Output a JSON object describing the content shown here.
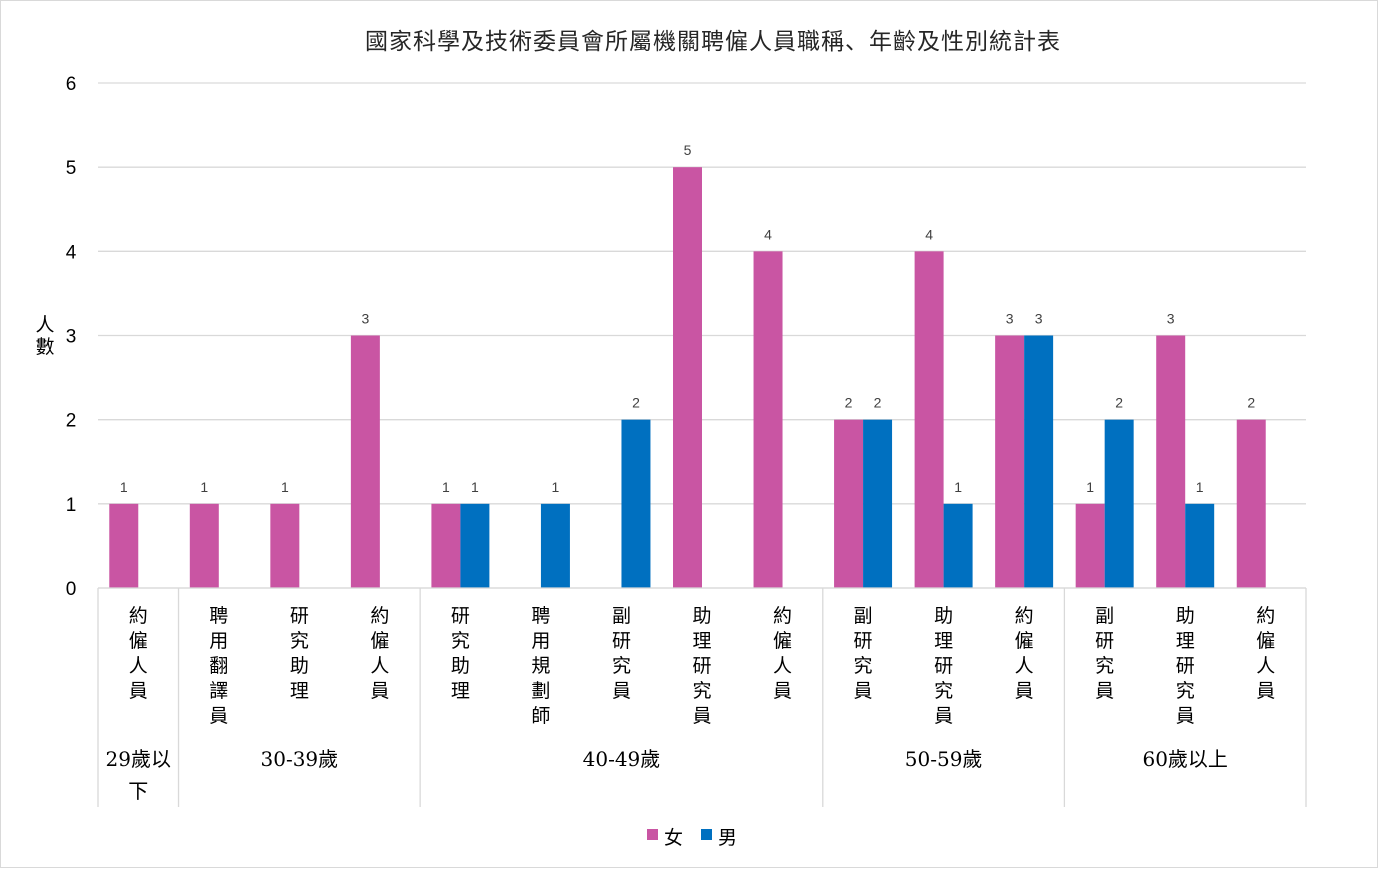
{
  "chart_data": {
    "type": "bar",
    "title": "國家科學及技術委員會所屬機關聘僱人員職稱、年齡及性別統計表",
    "ylabel": "人數",
    "xlabel": "",
    "ylim": [
      0,
      6
    ],
    "yticks": [
      0,
      1,
      2,
      3,
      4,
      5,
      6
    ],
    "grid": true,
    "legend_position": "bottom",
    "groups": [
      {
        "label": "29歲以下",
        "categories": [
          "約僱人員"
        ]
      },
      {
        "label": "30-39歲",
        "categories": [
          "聘用翻譯員",
          "研究助理",
          "約僱人員"
        ]
      },
      {
        "label": "40-49歲",
        "categories": [
          "研究助理",
          "聘用規劃師",
          "副研究員",
          "助理研究員",
          "約僱人員"
        ]
      },
      {
        "label": "50-59歲",
        "categories": [
          "副研究員",
          "助理研究員",
          "約僱人員"
        ]
      },
      {
        "label": "60歲以上",
        "categories": [
          "副研究員",
          "助理研究員",
          "約僱人員"
        ]
      }
    ],
    "series": [
      {
        "name": "女",
        "color": "#C955A3",
        "values": [
          1,
          1,
          1,
          3,
          1,
          null,
          null,
          5,
          4,
          2,
          4,
          3,
          1,
          3,
          2
        ]
      },
      {
        "name": "男",
        "color": "#0070C0",
        "values": [
          null,
          null,
          null,
          null,
          1,
          1,
          2,
          null,
          null,
          2,
          1,
          3,
          2,
          1,
          null
        ]
      }
    ]
  }
}
